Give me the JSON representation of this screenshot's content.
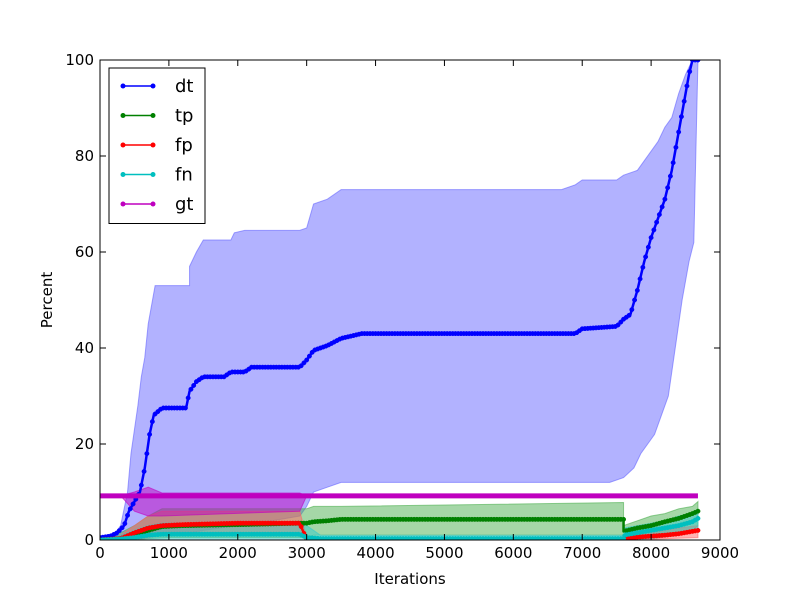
{
  "chart_data": {
    "type": "line",
    "title": "",
    "xlabel": "Iterations",
    "ylabel": "Percent",
    "xlim": [
      0,
      9000
    ],
    "ylim": [
      0,
      100
    ],
    "xticks": [
      0,
      1000,
      2000,
      3000,
      4000,
      5000,
      6000,
      7000,
      8000,
      9000
    ],
    "yticks": [
      0,
      20,
      40,
      60,
      80,
      100
    ],
    "grid": false,
    "legend_position": "upper-left",
    "series": [
      {
        "name": "dt",
        "color": "#0000ff",
        "points": [
          [
            0,
            0.5
          ],
          [
            150,
            0.8
          ],
          [
            250,
            1.5
          ],
          [
            350,
            3
          ],
          [
            420,
            6
          ],
          [
            500,
            8
          ],
          [
            580,
            10
          ],
          [
            650,
            15
          ],
          [
            720,
            22
          ],
          [
            780,
            26
          ],
          [
            900,
            27.5
          ],
          [
            1250,
            27.5
          ],
          [
            1300,
            31
          ],
          [
            1400,
            33
          ],
          [
            1500,
            34
          ],
          [
            1800,
            34
          ],
          [
            1900,
            35
          ],
          [
            2100,
            35
          ],
          [
            2200,
            36
          ],
          [
            2900,
            36
          ],
          [
            3000,
            37.5
          ],
          [
            3100,
            39.5
          ],
          [
            3300,
            40.5
          ],
          [
            3500,
            42
          ],
          [
            3800,
            43
          ],
          [
            6900,
            43
          ],
          [
            7000,
            44
          ],
          [
            7500,
            44.5
          ],
          [
            7600,
            46
          ],
          [
            7700,
            47
          ],
          [
            7800,
            52
          ],
          [
            7900,
            58
          ],
          [
            8000,
            63
          ],
          [
            8100,
            67
          ],
          [
            8200,
            71
          ],
          [
            8300,
            77
          ],
          [
            8400,
            85
          ],
          [
            8500,
            93
          ],
          [
            8550,
            97
          ],
          [
            8600,
            100
          ],
          [
            8680,
            100
          ]
        ],
        "band": {
          "color": "#6666ff",
          "upper": [
            [
              0,
              0.5
            ],
            [
              200,
              1
            ],
            [
              300,
              3
            ],
            [
              400,
              10
            ],
            [
              450,
              18
            ],
            [
              550,
              28
            ],
            [
              600,
              34
            ],
            [
              650,
              38
            ],
            [
              700,
              45
            ],
            [
              800,
              53
            ],
            [
              1300,
              53
            ],
            [
              1300,
              57
            ],
            [
              1400,
              60
            ],
            [
              1500,
              62.5
            ],
            [
              1900,
              62.5
            ],
            [
              1950,
              64
            ],
            [
              2100,
              64.5
            ],
            [
              2900,
              64.5
            ],
            [
              3000,
              65
            ],
            [
              3100,
              70
            ],
            [
              3300,
              71
            ],
            [
              3500,
              73
            ],
            [
              6700,
              73
            ],
            [
              6900,
              74
            ],
            [
              7000,
              75
            ],
            [
              7500,
              75
            ],
            [
              7600,
              76
            ],
            [
              7800,
              77
            ],
            [
              7900,
              79
            ],
            [
              8000,
              81
            ],
            [
              8100,
              83
            ],
            [
              8200,
              86
            ],
            [
              8300,
              88
            ],
            [
              8400,
              93
            ],
            [
              8500,
              97
            ],
            [
              8600,
              100
            ],
            [
              8680,
              100
            ]
          ],
          "lower": [
            [
              0,
              0
            ],
            [
              300,
              0
            ],
            [
              500,
              0.5
            ],
            [
              700,
              1
            ],
            [
              900,
              1.5
            ],
            [
              1300,
              1.5
            ],
            [
              1500,
              2
            ],
            [
              2000,
              3
            ],
            [
              2500,
              4
            ],
            [
              2900,
              5
            ],
            [
              3000,
              7
            ],
            [
              3100,
              10
            ],
            [
              3300,
              11
            ],
            [
              3500,
              12
            ],
            [
              7400,
              12
            ],
            [
              7600,
              13
            ],
            [
              7750,
              15
            ],
            [
              7850,
              18
            ],
            [
              7950,
              20
            ],
            [
              8050,
              22
            ],
            [
              8150,
              26
            ],
            [
              8250,
              30
            ],
            [
              8350,
              40
            ],
            [
              8450,
              50
            ],
            [
              8550,
              58
            ],
            [
              8620,
              62
            ],
            [
              8680,
              100
            ]
          ]
        }
      },
      {
        "name": "tp",
        "color": "#008000",
        "points": [
          [
            0,
            0
          ],
          [
            300,
            0.3
          ],
          [
            500,
            1
          ],
          [
            700,
            2
          ],
          [
            900,
            2.8
          ],
          [
            1200,
            3
          ],
          [
            2000,
            3.2
          ],
          [
            2900,
            3.5
          ],
          [
            3000,
            3.5
          ],
          [
            3100,
            3.8
          ],
          [
            3300,
            4
          ],
          [
            3500,
            4.3
          ],
          [
            7600,
            4.3
          ],
          [
            7600,
            1.8
          ],
          [
            7800,
            2.5
          ],
          [
            8000,
            3
          ],
          [
            8200,
            3.8
          ],
          [
            8400,
            4.5
          ],
          [
            8600,
            5.5
          ],
          [
            8680,
            6
          ]
        ],
        "band": {
          "color": "#4caf50",
          "upper": [
            [
              0,
              0.5
            ],
            [
              300,
              1.5
            ],
            [
              500,
              3
            ],
            [
              700,
              5
            ],
            [
              900,
              6.5
            ],
            [
              2900,
              6.5
            ],
            [
              3000,
              6.5
            ],
            [
              3100,
              7
            ],
            [
              3500,
              7
            ],
            [
              7600,
              7.8
            ],
            [
              7600,
              3
            ],
            [
              7800,
              4
            ],
            [
              8000,
              5
            ],
            [
              8200,
              5.5
            ],
            [
              8400,
              6.5
            ],
            [
              8600,
              7
            ],
            [
              8680,
              8
            ]
          ],
          "lower": [
            [
              0,
              0
            ],
            [
              500,
              0
            ],
            [
              700,
              0.3
            ],
            [
              1000,
              0.5
            ],
            [
              2900,
              0.5
            ],
            [
              3000,
              0.5
            ],
            [
              3100,
              1
            ],
            [
              3500,
              1
            ],
            [
              7600,
              1
            ],
            [
              7600,
              0.5
            ],
            [
              8000,
              0.5
            ],
            [
              8400,
              1
            ],
            [
              8600,
              2
            ],
            [
              8680,
              3
            ]
          ]
        }
      },
      {
        "name": "fp",
        "color": "#ff0000",
        "points": [
          [
            0,
            0
          ],
          [
            300,
            0.3
          ],
          [
            500,
            1.5
          ],
          [
            700,
            2.5
          ],
          [
            900,
            3
          ],
          [
            1200,
            3.2
          ],
          [
            2000,
            3.5
          ],
          [
            2900,
            3.5
          ],
          [
            3000,
            0
          ],
          [
            7600,
            0
          ],
          [
            7600,
            0.3
          ],
          [
            7800,
            0.6
          ],
          [
            8000,
            0.8
          ],
          [
            8200,
            1
          ],
          [
            8400,
            1.3
          ],
          [
            8600,
            1.8
          ],
          [
            8680,
            2
          ]
        ],
        "band": {
          "color": "#ff6666",
          "upper": [
            [
              0,
              0.3
            ],
            [
              300,
              1
            ],
            [
              500,
              3
            ],
            [
              700,
              5
            ],
            [
              900,
              6
            ],
            [
              2900,
              6
            ],
            [
              3000,
              0.5
            ],
            [
              7600,
              0.5
            ],
            [
              7600,
              1
            ],
            [
              8000,
              1.5
            ],
            [
              8400,
              2.5
            ],
            [
              8680,
              3
            ]
          ],
          "lower": [
            [
              0,
              0
            ],
            [
              500,
              0
            ],
            [
              700,
              0.5
            ],
            [
              900,
              1
            ],
            [
              2900,
              1
            ],
            [
              3000,
              0
            ],
            [
              7600,
              0
            ],
            [
              8680,
              0.5
            ]
          ]
        }
      },
      {
        "name": "fn",
        "color": "#00bfbf",
        "points": [
          [
            0,
            0
          ],
          [
            300,
            0.2
          ],
          [
            500,
            0.5
          ],
          [
            700,
            1
          ],
          [
            900,
            1.2
          ],
          [
            2900,
            1.2
          ],
          [
            3000,
            0.5
          ],
          [
            3200,
            0.3
          ],
          [
            7600,
            0.3
          ],
          [
            7600,
            1
          ],
          [
            7800,
            1.5
          ],
          [
            8000,
            2
          ],
          [
            8200,
            2.5
          ],
          [
            8400,
            3
          ],
          [
            8600,
            3.8
          ],
          [
            8680,
            4.5
          ]
        ],
        "band": {
          "color": "#33cccc",
          "upper": [
            [
              0,
              0.5
            ],
            [
              300,
              1
            ],
            [
              500,
              2
            ],
            [
              700,
              3
            ],
            [
              900,
              3.5
            ],
            [
              2900,
              3.5
            ],
            [
              3000,
              3
            ],
            [
              3200,
              1
            ],
            [
              7600,
              1
            ],
            [
              7600,
              2.5
            ],
            [
              7800,
              3
            ],
            [
              8000,
              3.5
            ],
            [
              8200,
              4
            ],
            [
              8400,
              5
            ],
            [
              8600,
              5.5
            ],
            [
              8680,
              6
            ]
          ],
          "lower": [
            [
              0,
              0
            ],
            [
              2900,
              0
            ],
            [
              3000,
              0
            ],
            [
              7600,
              0
            ],
            [
              7600,
              0
            ],
            [
              8000,
              0.3
            ],
            [
              8400,
              1
            ],
            [
              8680,
              2
            ]
          ]
        }
      },
      {
        "name": "gt",
        "color": "#bf00bf",
        "points": [
          [
            0,
            9.2
          ],
          [
            8680,
            9.2
          ]
        ],
        "band": {
          "color": "#bf00bf",
          "upper": [
            [
              300,
              9.2
            ],
            [
              500,
              10
            ],
            [
              700,
              11
            ],
            [
              900,
              9.8
            ],
            [
              2900,
              9.8
            ],
            [
              3000,
              9.2
            ]
          ],
          "lower": [
            [
              300,
              9.2
            ],
            [
              500,
              6
            ],
            [
              700,
              5
            ],
            [
              900,
              5
            ],
            [
              2900,
              6
            ],
            [
              3000,
              9.2
            ]
          ]
        }
      }
    ]
  }
}
